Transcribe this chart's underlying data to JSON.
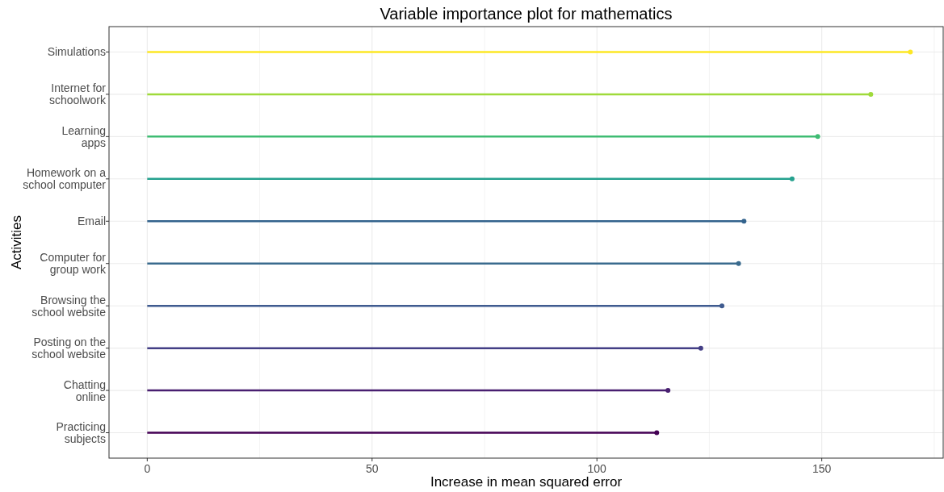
{
  "chart_data": {
    "type": "lollipop",
    "title": "Variable importance plot for mathematics",
    "xlabel": "Increase in mean squared error",
    "ylabel": "Activities",
    "orientation": "horizontal",
    "categories": [
      "Simulations",
      "Internet for\nschoolwork",
      "Learning\napps",
      "Homework on a\nschool computer",
      "Email",
      "Computer for\ngroup work",
      "Browsing the\nschool website",
      "Posting on the\nschool website",
      "Chatting\nonline",
      "Practicing\nsubjects"
    ],
    "values": [
      169.7,
      160.9,
      149.1,
      143.4,
      132.7,
      131.5,
      127.8,
      123.1,
      115.8,
      113.3
    ],
    "colors": [
      "#fde725",
      "#9fda3a",
      "#3fbc73",
      "#25a18e",
      "#33638d",
      "#3a6b8e",
      "#3f5b8f",
      "#433e85",
      "#481f70",
      "#440154"
    ],
    "xlim": [
      -8.5,
      177
    ],
    "xticks": [
      0,
      50,
      100,
      150
    ],
    "grid": true,
    "marker": "circle"
  }
}
